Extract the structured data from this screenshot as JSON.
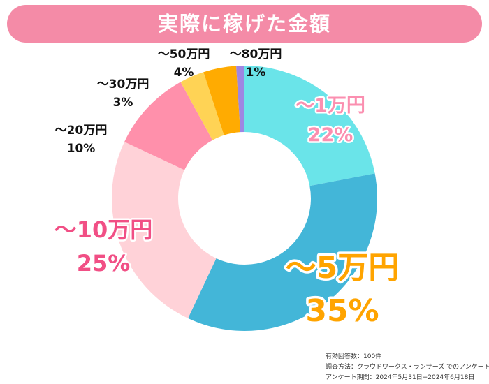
{
  "header": {
    "title": "実際に稼げた金額"
  },
  "chart_data": {
    "type": "donut",
    "title": "実際に稼げた金額",
    "categories": [
      "〜1万円",
      "〜5万円",
      "〜10万円",
      "〜20万円",
      "〜30万円",
      "〜50万円",
      "〜80万円"
    ],
    "values": [
      22,
      35,
      25,
      10,
      3,
      4,
      1
    ],
    "value_labels": [
      "22%",
      "35%",
      "25%",
      "10%",
      "3%",
      "4%",
      "1%"
    ],
    "unit": "%",
    "colors": [
      "#6ae4e9",
      "#43b6d8",
      "#ffd2d8",
      "#ff90ab",
      "#ffd355",
      "#ffab01",
      "#9e86e2"
    ],
    "label_colors": [
      "#fb8fb0",
      "#ffa400",
      "#f14f85",
      "#111111",
      "#111111",
      "#111111",
      "#111111"
    ],
    "start_angle_deg": 0,
    "direction": "clockwise",
    "legend": "none"
  },
  "footer": {
    "sample": "有効回答数：100件",
    "method": "調査方法：クラウドワークス・ランサーズ でのアンケート",
    "period": "アンケート期間：2024年5月31日−2024年6月18日"
  }
}
